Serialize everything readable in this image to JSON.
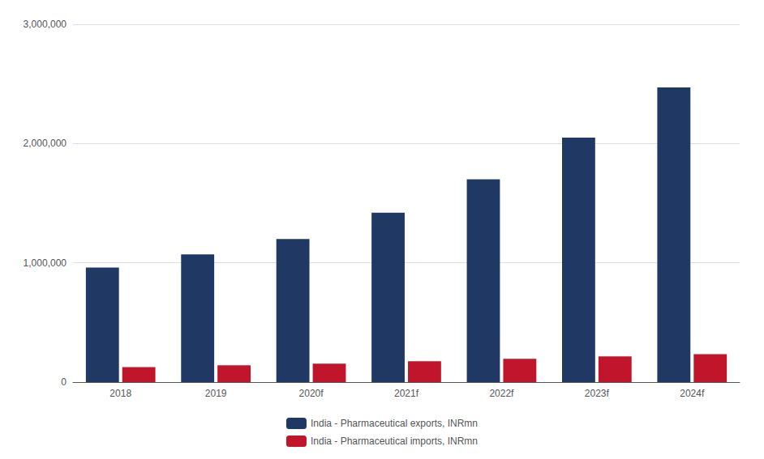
{
  "chart_data": {
    "type": "bar",
    "categories": [
      "2018",
      "2019",
      "2020f",
      "2021f",
      "2022f",
      "2023f",
      "2024f"
    ],
    "series": [
      {
        "name": "India - Pharmaceutical exports, INRmn",
        "color": "#1f3864",
        "values": [
          960000,
          1070000,
          1200000,
          1420000,
          1700000,
          2050000,
          2470000
        ]
      },
      {
        "name": "India - Pharmaceutical imports, INRmn",
        "color": "#c0152a",
        "values": [
          125000,
          140000,
          155000,
          175000,
          195000,
          215000,
          235000
        ]
      }
    ],
    "ylim": [
      0,
      3000000
    ],
    "yticks": [
      0,
      {
        "value": 1000000,
        "label": "1,000,000"
      },
      {
        "value": 2000000,
        "label": "2,000,000"
      },
      {
        "value": 3000000,
        "label": "3,000,000"
      }
    ],
    "grid": true,
    "legend": "bottom"
  }
}
